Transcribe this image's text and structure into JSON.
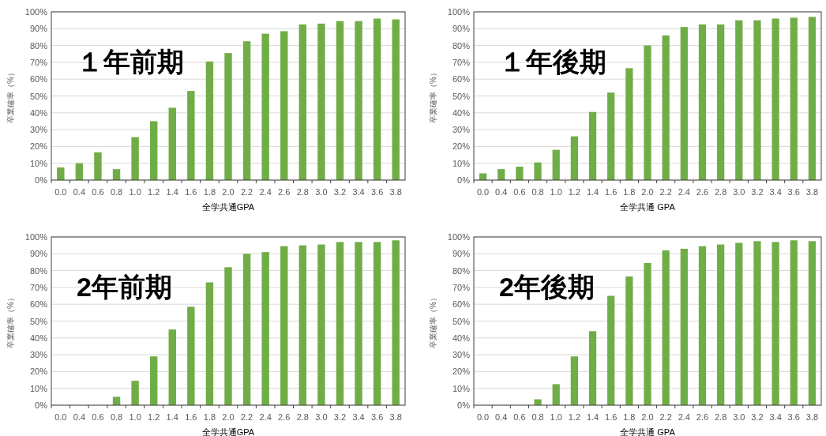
{
  "chart_data": [
    {
      "type": "bar",
      "title": "１年前期",
      "xlabel": "全学共通GPA",
      "ylabel": "卒業確率（%）",
      "color": "#70ad47",
      "grid": "y",
      "ylim": [
        0,
        100
      ],
      "yticks": [
        {
          "value": 0,
          "label": "0%"
        },
        {
          "value": 10,
          "label": "10%"
        },
        {
          "value": 20,
          "label": "20%"
        },
        {
          "value": 30,
          "label": "30%"
        },
        {
          "value": 40,
          "label": "40%"
        },
        {
          "value": 50,
          "label": "50%"
        },
        {
          "value": 60,
          "label": "60%"
        },
        {
          "value": 70,
          "label": "70%"
        },
        {
          "value": 80,
          "label": "80%"
        },
        {
          "value": 90,
          "label": "90%"
        },
        {
          "value": 100,
          "label": "100%"
        }
      ],
      "categories": [
        "0.0",
        "0.4",
        "0.6",
        "0.8",
        "1.0",
        "1.2",
        "1.4",
        "1.6",
        "1.8",
        "2.0",
        "2.2",
        "2.4",
        "2.6",
        "2.8",
        "3.0",
        "3.2",
        "3.4",
        "3.6",
        "3.8"
      ],
      "values": [
        7.5,
        10,
        16.5,
        6.5,
        25.5,
        35,
        43,
        53,
        70.5,
        75.5,
        82.5,
        87,
        88.5,
        92.5,
        93,
        94.5,
        94.5,
        96,
        95.5
      ]
    },
    {
      "type": "bar",
      "title": "１年後期",
      "xlabel": "全学共通 GPA",
      "ylabel": "卒業確率（%）",
      "color": "#70ad47",
      "grid": "y",
      "ylim": [
        0,
        100
      ],
      "yticks": [
        {
          "value": 0,
          "label": "0%"
        },
        {
          "value": 10,
          "label": "10%"
        },
        {
          "value": 20,
          "label": "20%"
        },
        {
          "value": 30,
          "label": "30%"
        },
        {
          "value": 40,
          "label": "40%"
        },
        {
          "value": 50,
          "label": "50%"
        },
        {
          "value": 60,
          "label": "60%"
        },
        {
          "value": 70,
          "label": "70%"
        },
        {
          "value": 80,
          "label": "80%"
        },
        {
          "value": 90,
          "label": "90%"
        },
        {
          "value": 100,
          "label": "100%"
        }
      ],
      "categories": [
        "0.0",
        "0.4",
        "0.6",
        "0.8",
        "1.0",
        "1.2",
        "1.4",
        "1.6",
        "1.8",
        "2.0",
        "2.2",
        "2.4",
        "2.6",
        "2.8",
        "3.0",
        "3.2",
        "3.4",
        "3.6",
        "3.8"
      ],
      "values": [
        4,
        6.5,
        8,
        10.5,
        18,
        26,
        40.5,
        52,
        66.5,
        80,
        86,
        91,
        92.5,
        92.5,
        95,
        95,
        96,
        96.5,
        97
      ]
    },
    {
      "type": "bar",
      "title": "2年前期",
      "xlabel": "全学共通GPA",
      "ylabel": "卒業確率（%）",
      "color": "#70ad47",
      "grid": "y",
      "ylim": [
        0,
        100
      ],
      "yticks": [
        {
          "value": 0,
          "label": "0%"
        },
        {
          "value": 10,
          "label": "10%"
        },
        {
          "value": 20,
          "label": "20%"
        },
        {
          "value": 30,
          "label": "30%"
        },
        {
          "value": 40,
          "label": "40%"
        },
        {
          "value": 50,
          "label": "50%"
        },
        {
          "value": 60,
          "label": "60%"
        },
        {
          "value": 70,
          "label": "70%"
        },
        {
          "value": 80,
          "label": "80%"
        },
        {
          "value": 90,
          "label": "90%"
        },
        {
          "value": 100,
          "label": "100%"
        }
      ],
      "categories": [
        "0.0",
        "0.4",
        "0.6",
        "0.8",
        "1.0",
        "1.2",
        "1.4",
        "1.6",
        "1.8",
        "2.0",
        "2.2",
        "2.4",
        "2.6",
        "2.8",
        "3.0",
        "3.2",
        "3.4",
        "3.6",
        "3.8"
      ],
      "values": [
        0,
        0,
        0,
        5,
        14.5,
        29,
        45,
        58.5,
        73,
        82,
        90,
        91,
        94.5,
        95,
        95.5,
        97,
        97,
        97,
        98
      ]
    },
    {
      "type": "bar",
      "title": "2年後期",
      "xlabel": "全学共通 GPA",
      "ylabel": "卒業確率（%）",
      "color": "#70ad47",
      "grid": "y",
      "ylim": [
        0,
        100
      ],
      "yticks": [
        {
          "value": 0,
          "label": "0%"
        },
        {
          "value": 10,
          "label": "10%"
        },
        {
          "value": 20,
          "label": "20%"
        },
        {
          "value": 30,
          "label": "30%"
        },
        {
          "value": 40,
          "label": "40%"
        },
        {
          "value": 50,
          "label": "50%"
        },
        {
          "value": 60,
          "label": "60%"
        },
        {
          "value": 70,
          "label": "70%"
        },
        {
          "value": 80,
          "label": "80%"
        },
        {
          "value": 90,
          "label": "90%"
        },
        {
          "value": 100,
          "label": "100%"
        }
      ],
      "categories": [
        "0.0",
        "0.4",
        "0.6",
        "0.8",
        "1.0",
        "1.2",
        "1.4",
        "1.6",
        "1.8",
        "2.0",
        "2.2",
        "2.4",
        "2.6",
        "2.8",
        "3.0",
        "3.2",
        "3.4",
        "3.6",
        "3.8"
      ],
      "values": [
        0,
        0,
        0,
        3.5,
        12.5,
        29,
        44,
        65,
        76.5,
        84.5,
        92,
        93,
        94.5,
        95.5,
        96.5,
        97.5,
        97,
        98,
        97.5
      ]
    }
  ]
}
